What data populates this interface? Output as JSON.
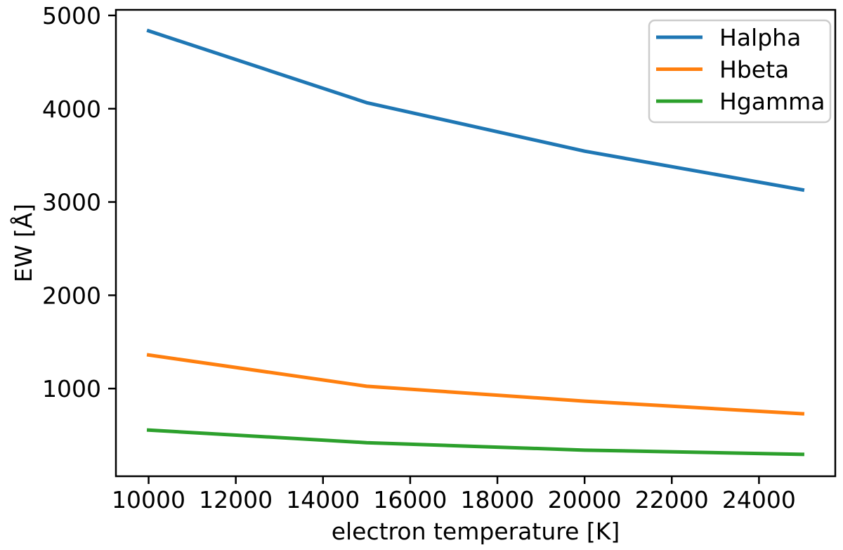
{
  "figure": {
    "background": "#ffffff",
    "axis_color": "#000000",
    "legend_frame_color": "#cccccc"
  },
  "chart_data": {
    "type": "line",
    "x": [
      10000,
      15000,
      20000,
      25000
    ],
    "series": [
      {
        "name": "Halpha",
        "color": "#1f77b4",
        "values": [
          4835,
          4065,
          3545,
          3130
        ]
      },
      {
        "name": "Hbeta",
        "color": "#ff7f0e",
        "values": [
          1360,
          1025,
          865,
          730
        ]
      },
      {
        "name": "Hgamma",
        "color": "#2ca02c",
        "values": [
          555,
          420,
          340,
          295
        ]
      }
    ],
    "title": "",
    "xlabel": "electron temperature [K]",
    "ylabel": "EW [Å]",
    "xticks": [
      10000,
      12000,
      14000,
      16000,
      18000,
      20000,
      22000,
      24000
    ],
    "yticks": [
      1000,
      2000,
      3000,
      4000,
      5000
    ],
    "xlim": [
      9250,
      25750
    ],
    "ylim": [
      60,
      5060
    ],
    "grid": false,
    "legend": {
      "position": "upper right"
    }
  }
}
